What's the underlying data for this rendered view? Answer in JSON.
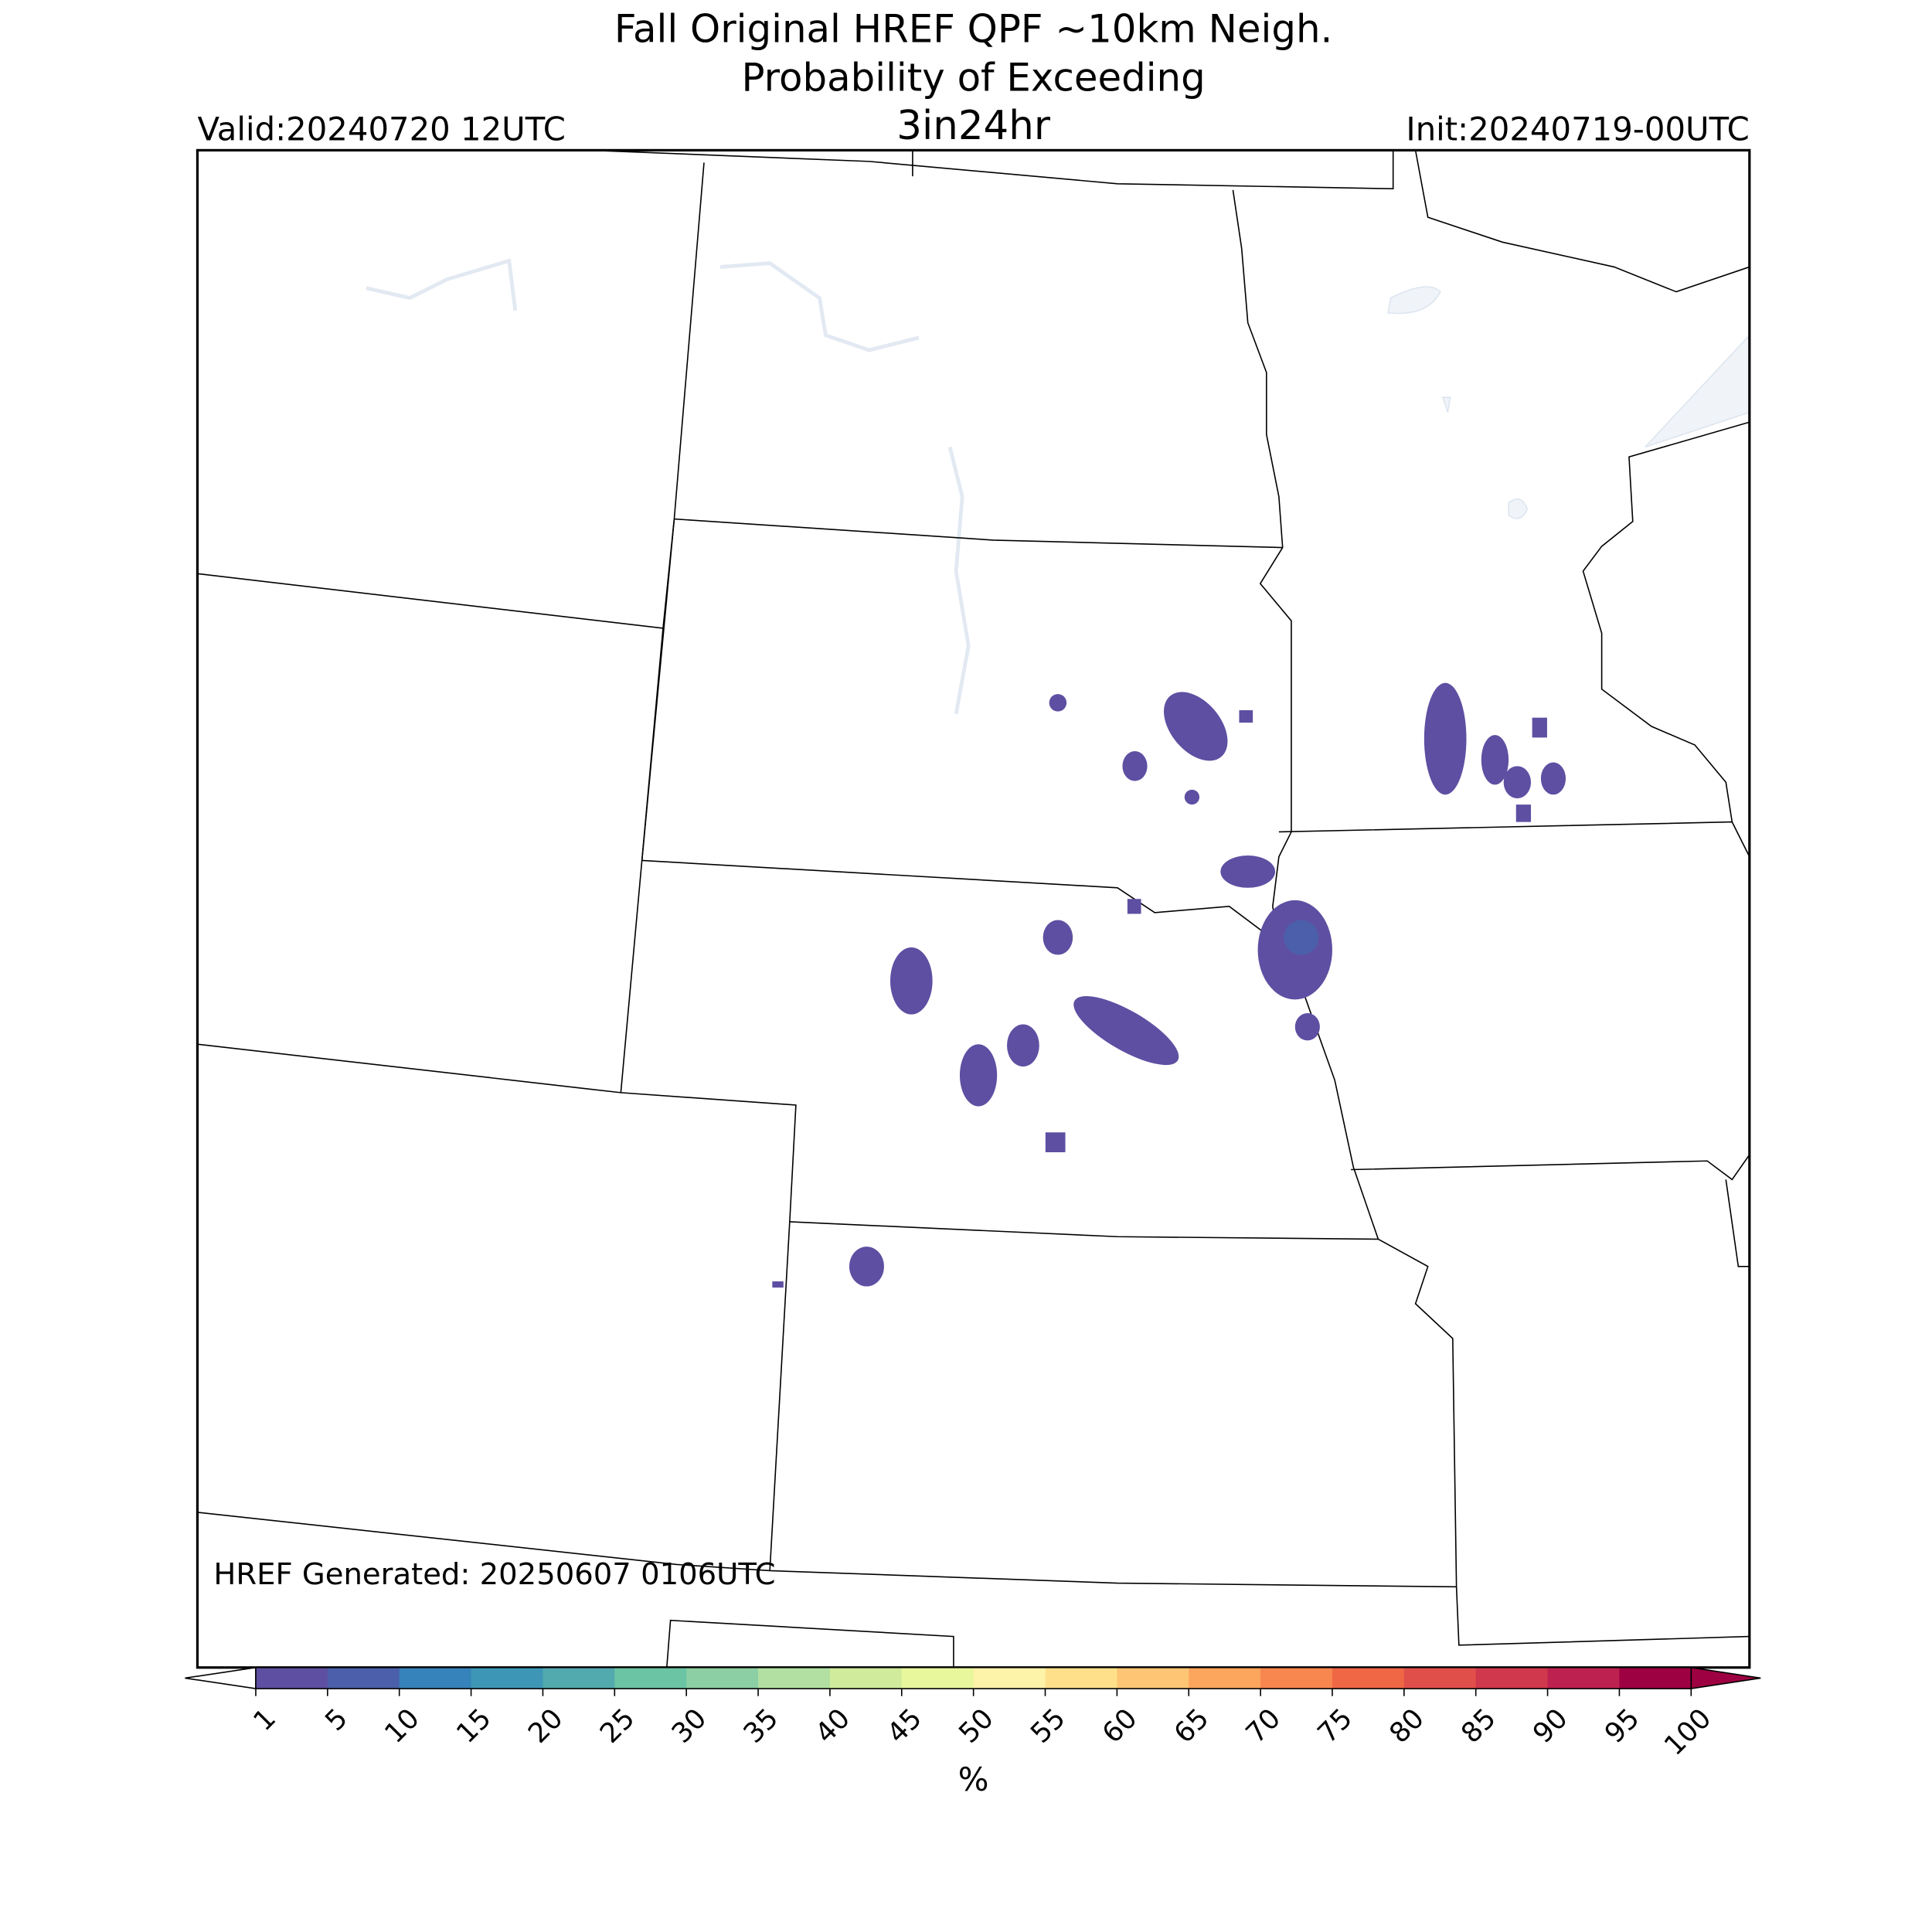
{
  "header": {
    "title_lines": [
      "Fall Original HREF QPF ~10km Neigh.",
      "Probability of Exceeding"
    ],
    "threshold": "3in24hr",
    "valid": "Valid:20240720 12UTC",
    "init": "Init:20240719-00UTC"
  },
  "map": {
    "generated": "HREF Generated: 20250607 0106UTC"
  },
  "colorbar": {
    "ticks": [
      1,
      5,
      10,
      15,
      20,
      25,
      30,
      35,
      40,
      45,
      50,
      55,
      60,
      65,
      70,
      75,
      80,
      85,
      90,
      95,
      100
    ],
    "colors": [
      "#5e4fa2",
      "#4b5fab",
      "#3682ba",
      "#3e96b7",
      "#52aaae",
      "#6bc4a4",
      "#8ccfa4",
      "#b2e0a2",
      "#d0eb9c",
      "#e8f69c",
      "#fdf3a9",
      "#fee08b",
      "#fdc574",
      "#fca55d",
      "#f8864f",
      "#ef6745",
      "#e04f4a",
      "#cf384d",
      "#bd2150",
      "#9e0142"
    ],
    "under_color": "#ffffff",
    "over_color": "#9e0142",
    "label": "%"
  }
}
